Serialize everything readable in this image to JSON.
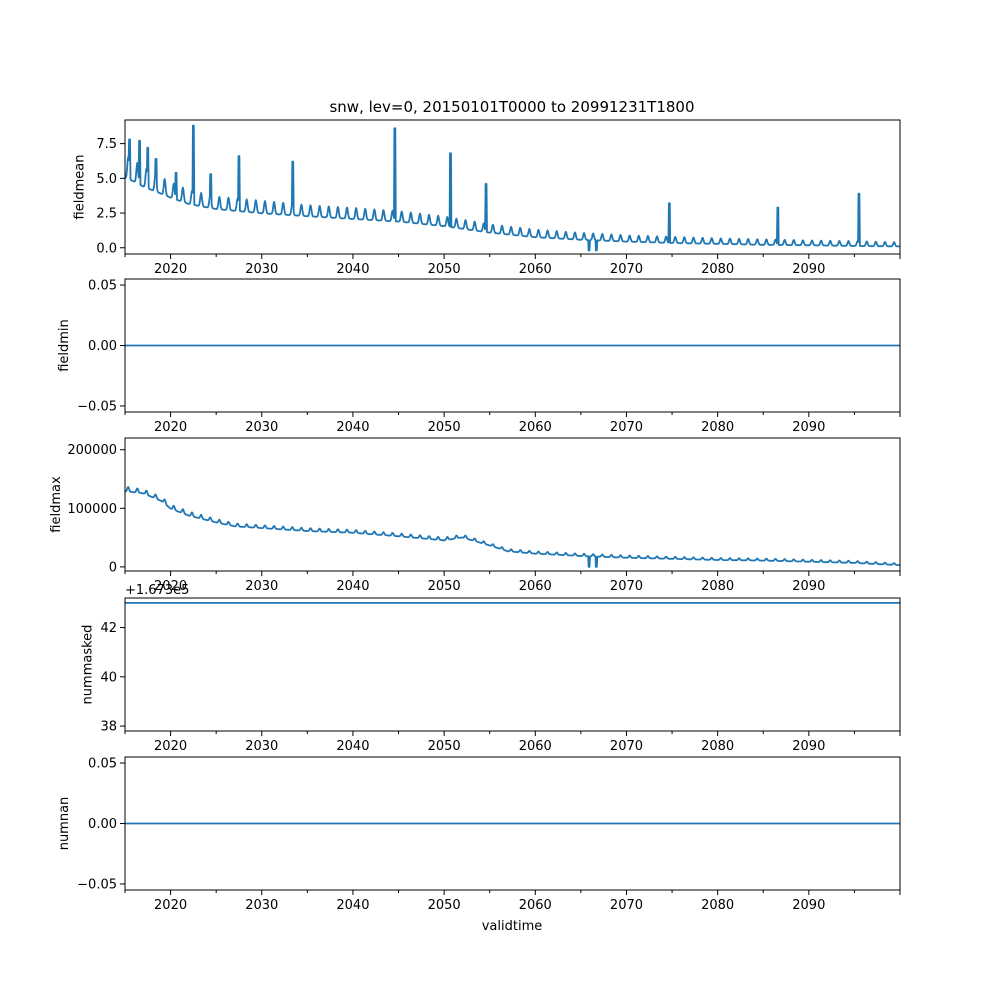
{
  "colors": {
    "line": "#1f77b4",
    "axes": "#000000",
    "background": "#ffffff"
  },
  "figure": {
    "title": "snw, lev=0, 20150101T0000 to 20991231T1800",
    "xlabel": "validtime"
  },
  "chart_data": [
    {
      "type": "line",
      "name": "fieldmean",
      "ylabel": "fieldmean",
      "xlim": [
        2015.0,
        2100.0
      ],
      "ylim": [
        -0.45,
        9.2
      ],
      "x_ticks": [
        2020,
        2030,
        2040,
        2050,
        2060,
        2070,
        2080,
        2090
      ],
      "x_tick_labels": [
        "2020",
        "2030",
        "2040",
        "2050",
        "2060",
        "2070",
        "2080",
        "2090"
      ],
      "y_ticks": [
        0.0,
        2.5,
        5.0,
        7.5
      ],
      "y_tick_labels": [
        "0.0",
        "2.5",
        "5.0",
        "7.5"
      ],
      "x": [
        2015.0,
        2016.0,
        2017.0,
        2018.0,
        2019.0,
        2020.0,
        2022.0,
        2025.0,
        2030.0,
        2035.0,
        2040.0,
        2045.0,
        2050.0,
        2055.0,
        2060.0,
        2065.0,
        2070.0,
        2075.0,
        2080.0,
        2085.0,
        2090.0,
        2095.0,
        2100.0
      ],
      "y": [
        5.6,
        5.3,
        4.9,
        4.6,
        4.3,
        4.0,
        3.5,
        3.1,
        2.8,
        2.55,
        2.35,
        2.15,
        1.8,
        1.3,
        0.95,
        0.75,
        0.6,
        0.5,
        0.42,
        0.35,
        0.3,
        0.25,
        0.2
      ],
      "seasonal_amplitude": [
        1.6,
        1.5,
        1.4,
        1.3,
        1.2,
        1.1,
        1.0,
        0.9,
        0.9,
        0.8,
        0.8,
        0.75,
        0.7,
        0.6,
        0.55,
        0.5,
        0.45,
        0.45,
        0.4,
        0.4,
        0.35,
        0.35,
        0.3
      ],
      "spikes": [
        {
          "x": 2015.5,
          "y": 7.8
        },
        {
          "x": 2016.6,
          "y": 7.7
        },
        {
          "x": 2017.5,
          "y": 7.2
        },
        {
          "x": 2018.4,
          "y": 6.4
        },
        {
          "x": 2020.6,
          "y": 5.4
        },
        {
          "x": 2022.5,
          "y": 8.8
        },
        {
          "x": 2024.4,
          "y": 5.3
        },
        {
          "x": 2027.5,
          "y": 6.6
        },
        {
          "x": 2033.4,
          "y": 6.2
        },
        {
          "x": 2044.6,
          "y": 8.6
        },
        {
          "x": 2050.7,
          "y": 6.8
        },
        {
          "x": 2054.6,
          "y": 4.6
        },
        {
          "x": 2065.9,
          "y": -0.2
        },
        {
          "x": 2066.7,
          "y": -0.2
        },
        {
          "x": 2074.7,
          "y": 3.2
        },
        {
          "x": 2086.6,
          "y": 2.9
        },
        {
          "x": 2095.5,
          "y": 3.9
        }
      ]
    },
    {
      "type": "line",
      "name": "fieldmin",
      "ylabel": "fieldmin",
      "xlim": [
        2015.0,
        2100.0
      ],
      "ylim": [
        -0.055,
        0.055
      ],
      "x_ticks": [
        2020,
        2030,
        2040,
        2050,
        2060,
        2070,
        2080,
        2090
      ],
      "x_tick_labels": [
        "2020",
        "2030",
        "2040",
        "2050",
        "2060",
        "2070",
        "2080",
        "2090"
      ],
      "y_ticks": [
        -0.05,
        0.0,
        0.05
      ],
      "y_tick_labels": [
        "−0.05",
        "0.00",
        "0.05"
      ],
      "x": [
        2015.0,
        2100.0
      ],
      "y": [
        0.0,
        0.0
      ]
    },
    {
      "type": "line",
      "name": "fieldmax",
      "ylabel": "fieldmax",
      "xlim": [
        2015.0,
        2100.0
      ],
      "ylim": [
        -7000,
        220000
      ],
      "x_ticks": [
        2020,
        2030,
        2040,
        2050,
        2060,
        2070,
        2080,
        2090
      ],
      "x_tick_labels": [
        "2020",
        "2030",
        "2040",
        "2050",
        "2060",
        "2070",
        "2080",
        "2090"
      ],
      "y_ticks": [
        0,
        100000,
        200000
      ],
      "y_tick_labels": [
        "0",
        "100000",
        "200000"
      ],
      "x": [
        2015.0,
        2017.0,
        2019.0,
        2020.0,
        2022.0,
        2025.0,
        2027.0,
        2030.0,
        2035.0,
        2040.0,
        2045.0,
        2050.0,
        2052.0,
        2055.0,
        2057.0,
        2060.0,
        2065.0,
        2070.0,
        2075.0,
        2080.0,
        2085.0,
        2090.0,
        2095.0,
        2100.0
      ],
      "y": [
        132000,
        128000,
        115000,
        102000,
        90000,
        78000,
        71000,
        68000,
        63000,
        60000,
        54000,
        47000,
        52000,
        38000,
        28000,
        24000,
        20000,
        17000,
        15000,
        13000,
        12000,
        10000,
        8000,
        4000
      ],
      "seasonal_amplitude": [
        8000,
        7000,
        7000,
        7000,
        7000,
        6000,
        5000,
        5000,
        5000,
        5000,
        5000,
        5000,
        5000,
        4000,
        4000,
        4000,
        4000,
        4000,
        3500,
        3500,
        3500,
        3500,
        3500,
        3000
      ],
      "spikes": [
        {
          "x": 2065.9,
          "y": 0
        },
        {
          "x": 2066.7,
          "y": 0
        }
      ]
    },
    {
      "type": "line",
      "name": "nummasked",
      "ylabel": "nummasked",
      "offset_label": "+1.673e5",
      "xlim": [
        2015.0,
        2100.0
      ],
      "ylim": [
        37.8,
        43.2
      ],
      "x_ticks": [
        2020,
        2030,
        2040,
        2050,
        2060,
        2070,
        2080,
        2090
      ],
      "x_tick_labels": [
        "2020",
        "2030",
        "2040",
        "2050",
        "2060",
        "2070",
        "2080",
        "2090"
      ],
      "y_ticks": [
        38,
        40,
        42
      ],
      "y_tick_labels": [
        "38",
        "40",
        "42"
      ],
      "x": [
        2015.0,
        2100.0
      ],
      "y": [
        43.0,
        43.0
      ]
    },
    {
      "type": "line",
      "name": "numnan",
      "ylabel": "numnan",
      "xlim": [
        2015.0,
        2100.0
      ],
      "ylim": [
        -0.055,
        0.055
      ],
      "x_ticks": [
        2020,
        2030,
        2040,
        2050,
        2060,
        2070,
        2080,
        2090
      ],
      "x_tick_labels": [
        "2020",
        "2030",
        "2040",
        "2050",
        "2060",
        "2070",
        "2080",
        "2090"
      ],
      "y_ticks": [
        -0.05,
        0.0,
        0.05
      ],
      "y_tick_labels": [
        "−0.05",
        "0.00",
        "0.05"
      ],
      "x": [
        2015.0,
        2100.0
      ],
      "y": [
        0.0,
        0.0
      ]
    }
  ]
}
